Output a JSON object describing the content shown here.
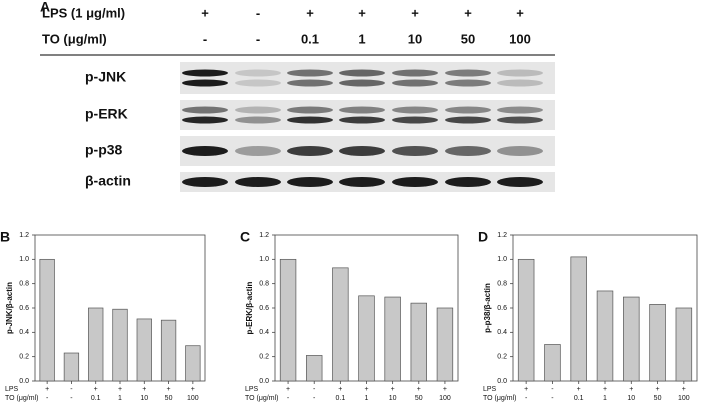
{
  "blot": {
    "panel": "A",
    "header_rows": [
      {
        "label": "LPS (1 μg/ml)",
        "values": [
          "+",
          "-",
          "+",
          "+",
          "+",
          "+",
          "+"
        ]
      },
      {
        "label": "TO (μg/ml)",
        "values": [
          "-",
          "-",
          "0.1",
          "1",
          "10",
          "50",
          "100"
        ]
      }
    ],
    "bands": [
      "p-JNK",
      "p-ERK",
      "p-p38",
      "β-actin"
    ]
  },
  "chart_data": [
    {
      "type": "bar",
      "panel": "B",
      "ylabel": "p-JNK/β-actin",
      "row_labels": [
        "LPS",
        "TO (μg/ml)"
      ],
      "lps": [
        "+",
        "-",
        "+",
        "+",
        "+",
        "+",
        "+"
      ],
      "categories": [
        "-",
        "-",
        "0.1",
        "1",
        "10",
        "50",
        "100"
      ],
      "values": [
        1.0,
        0.23,
        0.6,
        0.59,
        0.51,
        0.5,
        0.29
      ],
      "color": "#c8c8c8",
      "ylim": [
        0,
        1.2
      ],
      "yticks": [
        {
          "value": 0,
          "label": "0.0"
        },
        {
          "value": 0.2,
          "label": "0.2"
        },
        {
          "value": 0.4,
          "label": "0.4"
        },
        {
          "value": 0.6,
          "label": "0.6"
        },
        {
          "value": 0.8,
          "label": "0.8"
        },
        {
          "value": 1.0,
          "label": "1.0"
        },
        {
          "value": 1.2,
          "label": "1.2"
        }
      ]
    },
    {
      "type": "bar",
      "panel": "C",
      "ylabel": "p-ERK/β-actin",
      "row_labels": [
        "LPS",
        "TO (μg/ml)"
      ],
      "lps": [
        "+",
        "-",
        "+",
        "+",
        "+",
        "+",
        "+"
      ],
      "categories": [
        "-",
        "-",
        "0.1",
        "1",
        "10",
        "50",
        "100"
      ],
      "values": [
        1.0,
        0.21,
        0.93,
        0.7,
        0.69,
        0.64,
        0.6
      ],
      "color": "#c8c8c8",
      "ylim": [
        0,
        1.2
      ],
      "yticks": [
        {
          "value": 0,
          "label": "0.0"
        },
        {
          "value": 0.2,
          "label": "0.2"
        },
        {
          "value": 0.4,
          "label": "0.4"
        },
        {
          "value": 0.6,
          "label": "0.6"
        },
        {
          "value": 0.8,
          "label": "0.8"
        },
        {
          "value": 1.0,
          "label": "1.0"
        },
        {
          "value": 1.2,
          "label": "1.2"
        }
      ]
    },
    {
      "type": "bar",
      "panel": "D",
      "ylabel": "p-p38/β-actin",
      "row_labels": [
        "LPS",
        "TO (μg/ml)"
      ],
      "lps": [
        "+",
        "-",
        "+",
        "+",
        "+",
        "+",
        "+"
      ],
      "categories": [
        "-",
        "-",
        "0.1",
        "1",
        "10",
        "50",
        "100"
      ],
      "values": [
        1.0,
        0.3,
        1.02,
        0.74,
        0.69,
        0.63,
        0.6
      ],
      "color": "#c8c8c8",
      "ylim": [
        0,
        1.2
      ],
      "yticks": [
        {
          "value": 0,
          "label": "0.0"
        },
        {
          "value": 0.2,
          "label": "0.2"
        },
        {
          "value": 0.4,
          "label": "0.4"
        },
        {
          "value": 0.6,
          "label": "0.6"
        },
        {
          "value": 0.8,
          "label": "0.8"
        },
        {
          "value": 1.0,
          "label": "1.0"
        },
        {
          "value": 1.2,
          "label": "1.2"
        }
      ]
    }
  ]
}
